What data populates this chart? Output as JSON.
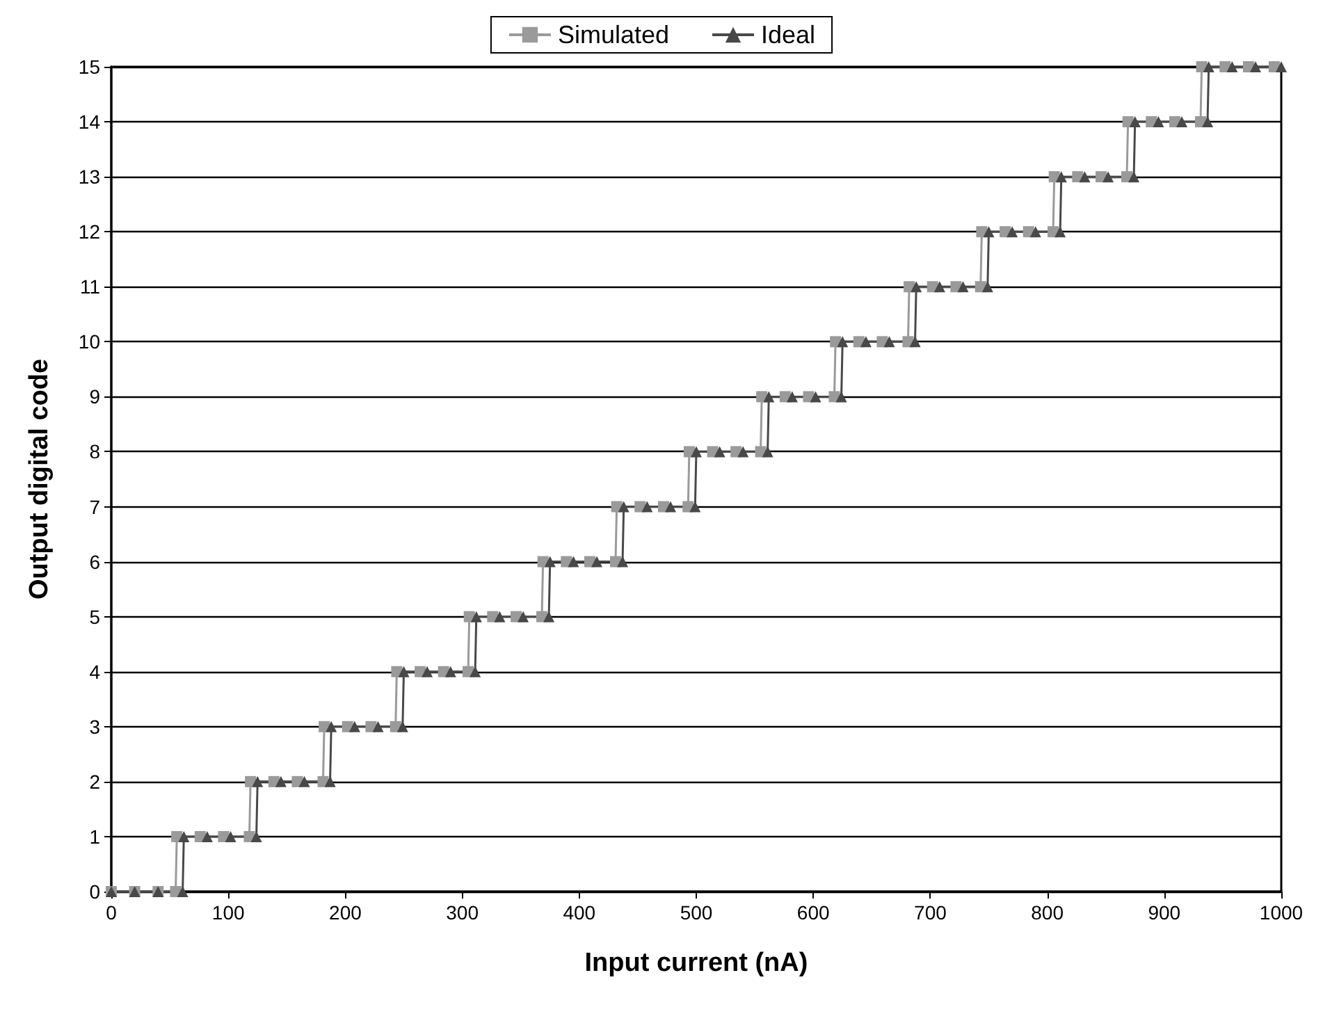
{
  "chart_data": {
    "type": "line",
    "xlabel": "Input current (nA)",
    "ylabel": "Output digital code",
    "xlim": [
      0,
      1000
    ],
    "xticks": [
      0,
      100,
      200,
      300,
      400,
      500,
      600,
      700,
      800,
      900,
      1000
    ],
    "ylim": [
      0,
      15
    ],
    "yticks": [
      0,
      1,
      2,
      3,
      4,
      5,
      6,
      7,
      8,
      9,
      10,
      11,
      12,
      13,
      14,
      15
    ],
    "grid": "y",
    "legend": "top",
    "series": [
      {
        "name": "Simulated",
        "color": "#9a9a9a",
        "marker": "square",
        "x": [
          0,
          20,
          40,
          55,
          56,
          76,
          96,
          118,
          119,
          139,
          159,
          181,
          182,
          202,
          222,
          243,
          244,
          264,
          284,
          305,
          306,
          326,
          346,
          368,
          369,
          389,
          409,
          431,
          432,
          452,
          472,
          493,
          494,
          514,
          534,
          555,
          556,
          576,
          596,
          618,
          619,
          639,
          659,
          681,
          682,
          702,
          722,
          743,
          744,
          764,
          784,
          805,
          806,
          826,
          846,
          868,
          869,
          889,
          909,
          931,
          932,
          952,
          972,
          994
        ],
        "values": [
          0,
          0,
          0,
          0,
          1,
          1,
          1,
          1,
          2,
          2,
          2,
          2,
          3,
          3,
          3,
          3,
          4,
          4,
          4,
          4,
          5,
          5,
          5,
          5,
          6,
          6,
          6,
          6,
          7,
          7,
          7,
          7,
          8,
          8,
          8,
          8,
          9,
          9,
          9,
          9,
          10,
          10,
          10,
          10,
          11,
          11,
          11,
          11,
          12,
          12,
          12,
          12,
          13,
          13,
          13,
          13,
          14,
          14,
          14,
          14,
          15,
          15,
          15,
          15
        ]
      },
      {
        "name": "Ideal",
        "color": "#484848",
        "marker": "triangle",
        "x": [
          0,
          20,
          40,
          61,
          62,
          82,
          102,
          124,
          125,
          145,
          165,
          187,
          188,
          208,
          228,
          249,
          250,
          270,
          290,
          311,
          312,
          332,
          352,
          374,
          375,
          395,
          415,
          437,
          438,
          458,
          478,
          499,
          500,
          520,
          540,
          561,
          562,
          582,
          602,
          624,
          625,
          645,
          665,
          687,
          688,
          708,
          728,
          749,
          750,
          770,
          790,
          811,
          812,
          832,
          852,
          874,
          875,
          895,
          915,
          937,
          938,
          958,
          978,
          1000
        ],
        "values": [
          0,
          0,
          0,
          0,
          1,
          1,
          1,
          1,
          2,
          2,
          2,
          2,
          3,
          3,
          3,
          3,
          4,
          4,
          4,
          4,
          5,
          5,
          5,
          5,
          6,
          6,
          6,
          6,
          7,
          7,
          7,
          7,
          8,
          8,
          8,
          8,
          9,
          9,
          9,
          9,
          10,
          10,
          10,
          10,
          11,
          11,
          11,
          11,
          12,
          12,
          12,
          12,
          13,
          13,
          13,
          13,
          14,
          14,
          14,
          14,
          15,
          15,
          15,
          15
        ]
      }
    ]
  }
}
